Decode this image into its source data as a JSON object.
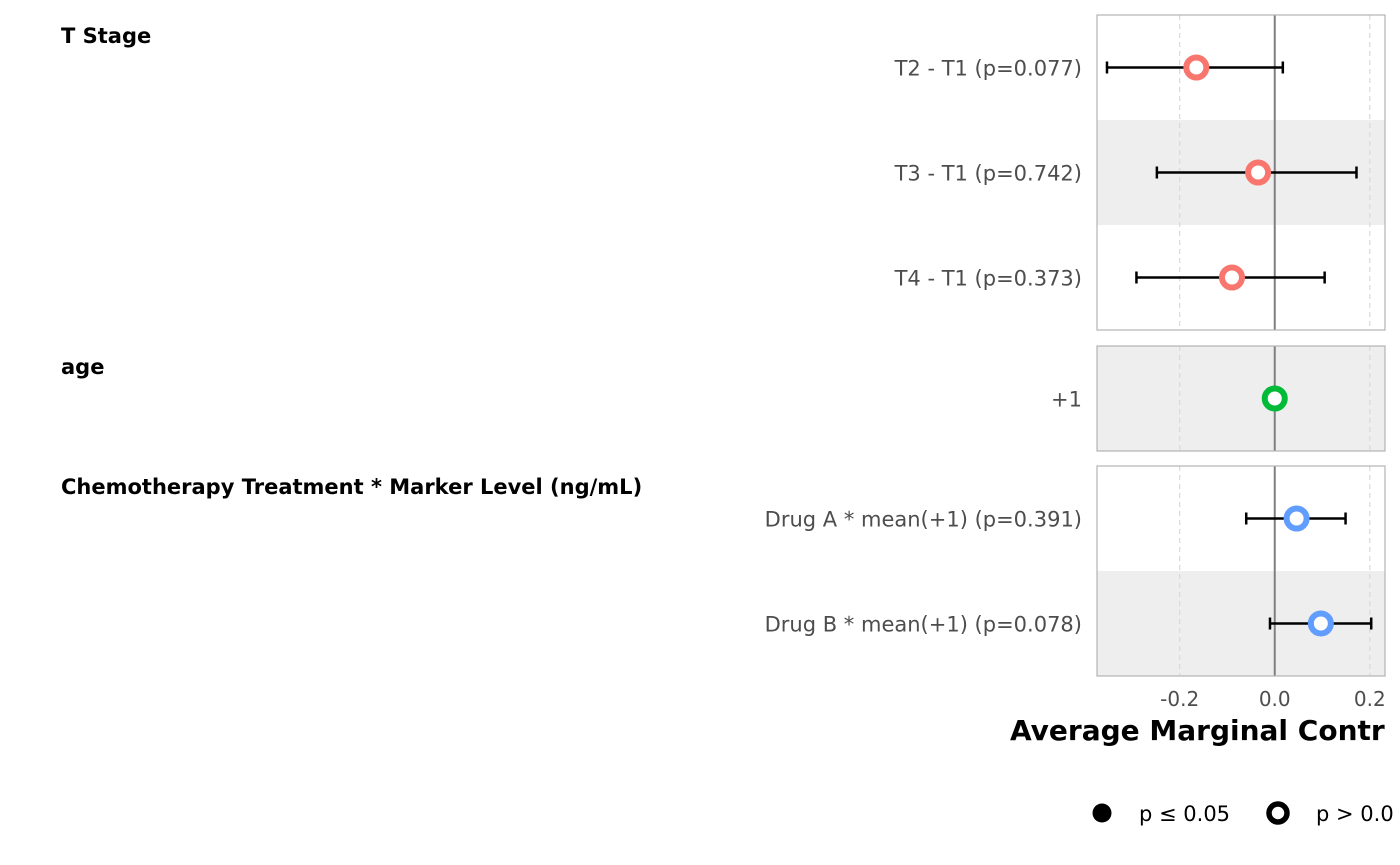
{
  "chart_data": {
    "type": "forest",
    "xlabel": "Average Marginal Contr",
    "xlim": [
      -0.374,
      0.232
    ],
    "xticks": [
      -0.2,
      0.0,
      0.2
    ],
    "xtick_labels": [
      "-0.2",
      "0.0",
      "0.2"
    ],
    "reference_line": 0.0,
    "groups": [
      {
        "title": "T Stage",
        "color": "#F8766D",
        "rows": [
          {
            "label": "T2 - T1 (p=0.077)",
            "estimate": -0.165,
            "low": -0.353,
            "high": 0.017,
            "p": 0.077,
            "shaded": false
          },
          {
            "label": "T3 - T1 (p=0.742)",
            "estimate": -0.035,
            "low": -0.248,
            "high": 0.172,
            "p": 0.742,
            "shaded": true
          },
          {
            "label": "T4 - T1 (p=0.373)",
            "estimate": -0.09,
            "low": -0.291,
            "high": 0.105,
            "p": 0.373,
            "shaded": false
          }
        ]
      },
      {
        "title": "age",
        "color": "#00BA38",
        "rows": [
          {
            "label": "+1",
            "estimate": 0.0,
            "low": null,
            "high": null,
            "p": null,
            "shaded": true
          }
        ]
      },
      {
        "title": "Chemotherapy Treatment * Marker Level (ng/mL)",
        "color": "#619CFF",
        "rows": [
          {
            "label": "Drug A * mean(+1) (p=0.391)",
            "estimate": 0.046,
            "low": -0.06,
            "high": 0.149,
            "p": 0.391,
            "shaded": false
          },
          {
            "label": "Drug B * mean(+1) (p=0.078)",
            "estimate": 0.097,
            "low": -0.01,
            "high": 0.203,
            "p": 0.078,
            "shaded": true
          }
        ]
      }
    ],
    "legend": {
      "placement": "bottom",
      "items": [
        {
          "label": "p ≤ 0.05",
          "marker": "filled-circle"
        },
        {
          "label": "p > 0.0",
          "marker": "hollow-circle"
        }
      ]
    }
  }
}
